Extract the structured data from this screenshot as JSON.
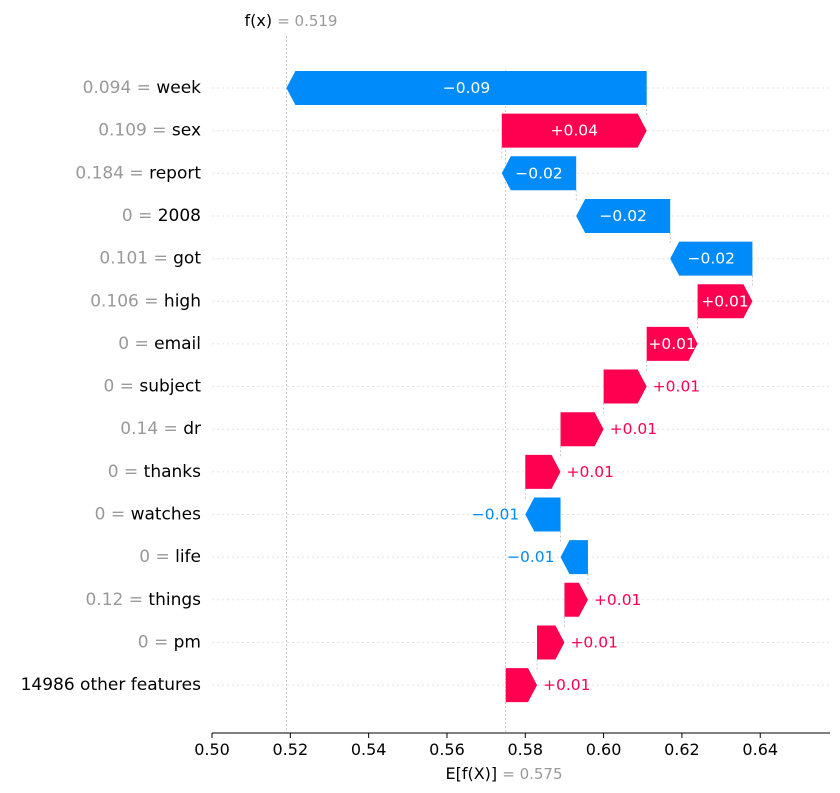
{
  "chart_data": {
    "type": "waterfall",
    "fx": {
      "label": "f(x)",
      "value": "0.519"
    },
    "base": {
      "label": "E[f(X)]",
      "value": "0.575"
    },
    "xlim": [
      0.5,
      0.66
    ],
    "xticks": [
      "0.50",
      "0.52",
      "0.54",
      "0.56",
      "0.58",
      "0.60",
      "0.62",
      "0.64"
    ],
    "colors": {
      "positive": "#ff0051",
      "negative": "#008bfb",
      "feature_value": "#999999"
    },
    "features": [
      {
        "value": "0.094",
        "name": "week",
        "start": 0.611,
        "end": 0.519,
        "label": "−0.09"
      },
      {
        "value": "0.109",
        "name": "sex",
        "start": 0.574,
        "end": 0.611,
        "label": "+0.04"
      },
      {
        "value": "0.184",
        "name": "report",
        "start": 0.593,
        "end": 0.574,
        "label": "−0.02"
      },
      {
        "value": "0",
        "name": "2008",
        "start": 0.617,
        "end": 0.593,
        "label": "−0.02"
      },
      {
        "value": "0.101",
        "name": "got",
        "start": 0.638,
        "end": 0.617,
        "label": "−0.02"
      },
      {
        "value": "0.106",
        "name": "high",
        "start": 0.624,
        "end": 0.638,
        "label": "+0.01"
      },
      {
        "value": "0",
        "name": "email",
        "start": 0.611,
        "end": 0.624,
        "label": "+0.01"
      },
      {
        "value": "0",
        "name": "subject",
        "start": 0.6,
        "end": 0.611,
        "label": "+0.01"
      },
      {
        "value": "0.14",
        "name": "dr",
        "start": 0.589,
        "end": 0.6,
        "label": "+0.01"
      },
      {
        "value": "0",
        "name": "thanks",
        "start": 0.58,
        "end": 0.589,
        "label": "+0.01"
      },
      {
        "value": "0",
        "name": "watches",
        "start": 0.589,
        "end": 0.58,
        "label": "−0.01"
      },
      {
        "value": "0",
        "name": "life",
        "start": 0.596,
        "end": 0.589,
        "label": "−0.01"
      },
      {
        "value": "0.12",
        "name": "things",
        "start": 0.59,
        "end": 0.596,
        "label": "+0.01"
      },
      {
        "value": "0",
        "name": "pm",
        "start": 0.583,
        "end": 0.59,
        "label": "+0.01"
      },
      {
        "value": "",
        "name": "14986 other features",
        "start": 0.575,
        "end": 0.583,
        "label": "+0.01"
      }
    ]
  }
}
